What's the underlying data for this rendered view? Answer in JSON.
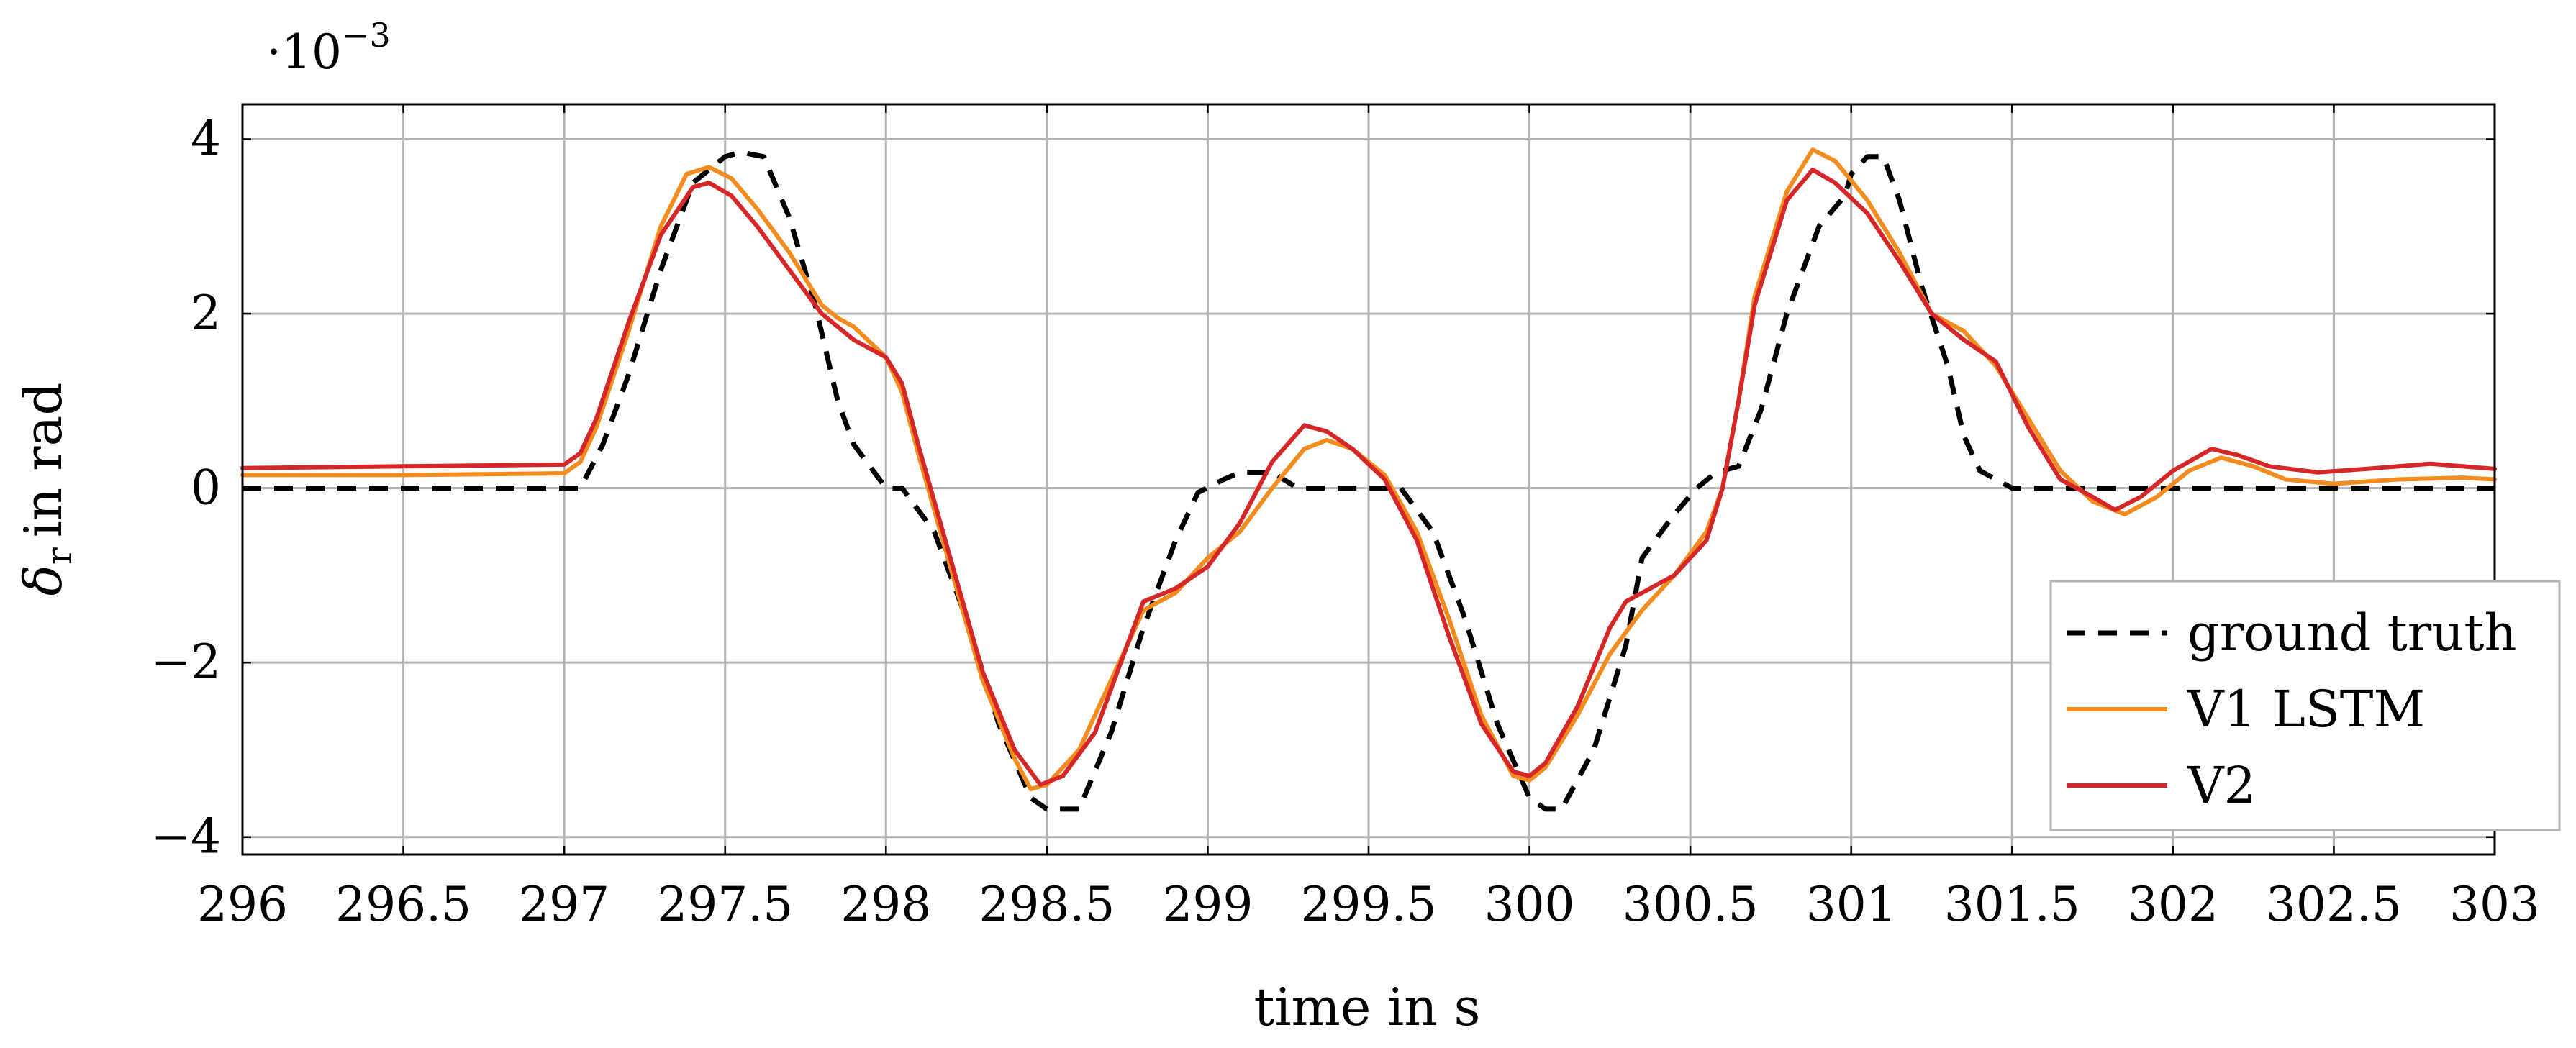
{
  "chart_data": {
    "type": "line",
    "title": "",
    "xlabel": "time in s",
    "ylabel": "in rad",
    "ylabel_symbol": "δ",
    "ylabel_subscript": "r",
    "y_exponent_base": "·10",
    "y_exponent": "−3",
    "xlim": [
      296,
      303
    ],
    "ylim": [
      -4.2,
      4.4
    ],
    "x_ticks": [
      296,
      296.5,
      297,
      297.5,
      298,
      298.5,
      299,
      299.5,
      300,
      300.5,
      301,
      301.5,
      302,
      302.5,
      303
    ],
    "x_tick_labels": [
      "296",
      "296.5",
      "297",
      "297.5",
      "298",
      "298.5",
      "299",
      "299.5",
      "300",
      "300.5",
      "301",
      "301.5",
      "302",
      "302.5",
      "303"
    ],
    "y_ticks": [
      -4,
      -2,
      0,
      2,
      4
    ],
    "y_tick_labels": [
      "−4",
      "−2",
      "0",
      "2",
      "4"
    ],
    "grid": true,
    "legend_position": "bottom-right",
    "series": [
      {
        "name": "ground truth",
        "color": "#000000",
        "dash": true,
        "points": [
          [
            296,
            0
          ],
          [
            297.05,
            0
          ],
          [
            297.12,
            0.5
          ],
          [
            297.2,
            1.3
          ],
          [
            297.3,
            2.5
          ],
          [
            297.4,
            3.5
          ],
          [
            297.5,
            3.8
          ],
          [
            297.55,
            3.85
          ],
          [
            297.62,
            3.8
          ],
          [
            297.7,
            3.1
          ],
          [
            297.78,
            2.1
          ],
          [
            297.85,
            1.0
          ],
          [
            297.9,
            0.5
          ],
          [
            297.95,
            0.25
          ],
          [
            298.0,
            0.0
          ],
          [
            298.05,
            0.0
          ],
          [
            298.15,
            -0.5
          ],
          [
            298.25,
            -1.5
          ],
          [
            298.35,
            -2.7
          ],
          [
            298.45,
            -3.55
          ],
          [
            298.5,
            -3.68
          ],
          [
            298.6,
            -3.68
          ],
          [
            298.7,
            -2.8
          ],
          [
            298.8,
            -1.6
          ],
          [
            298.9,
            -0.6
          ],
          [
            298.97,
            -0.05
          ],
          [
            299.05,
            0.1
          ],
          [
            299.1,
            0.18
          ],
          [
            299.2,
            0.18
          ],
          [
            299.28,
            0.0
          ],
          [
            299.6,
            0.0
          ],
          [
            299.7,
            -0.5
          ],
          [
            299.8,
            -1.5
          ],
          [
            299.9,
            -2.7
          ],
          [
            300.0,
            -3.55
          ],
          [
            300.05,
            -3.68
          ],
          [
            300.1,
            -3.68
          ],
          [
            300.2,
            -3.0
          ],
          [
            300.3,
            -1.8
          ],
          [
            300.35,
            -0.8
          ],
          [
            300.45,
            -0.3
          ],
          [
            300.52,
            0.0
          ],
          [
            300.58,
            0.18
          ],
          [
            300.65,
            0.25
          ],
          [
            300.72,
            0.9
          ],
          [
            300.8,
            2.0
          ],
          [
            300.9,
            3.0
          ],
          [
            300.98,
            3.35
          ],
          [
            301.0,
            3.6
          ],
          [
            301.05,
            3.8
          ],
          [
            301.1,
            3.8
          ],
          [
            301.15,
            3.3
          ],
          [
            301.22,
            2.3
          ],
          [
            301.3,
            1.4
          ],
          [
            301.35,
            0.6
          ],
          [
            301.4,
            0.2
          ],
          [
            301.5,
            0.0
          ],
          [
            303,
            0
          ]
        ]
      },
      {
        "name": "V1 LSTM",
        "color": "#f28c1e",
        "dash": false,
        "points": [
          [
            296,
            0.15
          ],
          [
            296.5,
            0.15
          ],
          [
            297.0,
            0.17
          ],
          [
            297.05,
            0.3
          ],
          [
            297.1,
            0.7
          ],
          [
            297.2,
            1.8
          ],
          [
            297.3,
            3.0
          ],
          [
            297.38,
            3.6
          ],
          [
            297.45,
            3.68
          ],
          [
            297.52,
            3.55
          ],
          [
            297.6,
            3.2
          ],
          [
            297.7,
            2.7
          ],
          [
            297.8,
            2.1
          ],
          [
            297.85,
            1.95
          ],
          [
            297.9,
            1.85
          ],
          [
            298.0,
            1.5
          ],
          [
            298.05,
            1.1
          ],
          [
            298.1,
            0.4
          ],
          [
            298.2,
            -0.9
          ],
          [
            298.3,
            -2.2
          ],
          [
            298.4,
            -3.1
          ],
          [
            298.45,
            -3.45
          ],
          [
            298.5,
            -3.4
          ],
          [
            298.6,
            -3.0
          ],
          [
            298.7,
            -2.2
          ],
          [
            298.8,
            -1.4
          ],
          [
            298.9,
            -1.2
          ],
          [
            299.0,
            -0.8
          ],
          [
            299.1,
            -0.5
          ],
          [
            299.2,
            0.0
          ],
          [
            299.3,
            0.45
          ],
          [
            299.37,
            0.55
          ],
          [
            299.45,
            0.45
          ],
          [
            299.55,
            0.15
          ],
          [
            299.65,
            -0.5
          ],
          [
            299.75,
            -1.5
          ],
          [
            299.85,
            -2.6
          ],
          [
            299.95,
            -3.3
          ],
          [
            300.0,
            -3.35
          ],
          [
            300.05,
            -3.2
          ],
          [
            300.15,
            -2.6
          ],
          [
            300.25,
            -1.9
          ],
          [
            300.35,
            -1.4
          ],
          [
            300.45,
            -1.0
          ],
          [
            300.55,
            -0.5
          ],
          [
            300.6,
            0.0
          ],
          [
            300.65,
            1.0
          ],
          [
            300.7,
            2.2
          ],
          [
            300.8,
            3.4
          ],
          [
            300.88,
            3.88
          ],
          [
            300.95,
            3.75
          ],
          [
            301.05,
            3.3
          ],
          [
            301.15,
            2.7
          ],
          [
            301.25,
            2.0
          ],
          [
            301.35,
            1.8
          ],
          [
            301.45,
            1.4
          ],
          [
            301.55,
            0.8
          ],
          [
            301.65,
            0.2
          ],
          [
            301.75,
            -0.15
          ],
          [
            301.85,
            -0.3
          ],
          [
            301.95,
            -0.1
          ],
          [
            302.05,
            0.2
          ],
          [
            302.15,
            0.35
          ],
          [
            302.25,
            0.25
          ],
          [
            302.35,
            0.1
          ],
          [
            302.5,
            0.05
          ],
          [
            302.7,
            0.1
          ],
          [
            302.9,
            0.12
          ],
          [
            303,
            0.1
          ]
        ]
      },
      {
        "name": "V2",
        "color": "#d62728",
        "dash": false,
        "points": [
          [
            296,
            0.23
          ],
          [
            296.5,
            0.25
          ],
          [
            297.0,
            0.27
          ],
          [
            297.05,
            0.4
          ],
          [
            297.1,
            0.8
          ],
          [
            297.2,
            1.9
          ],
          [
            297.3,
            2.9
          ],
          [
            297.4,
            3.45
          ],
          [
            297.45,
            3.5
          ],
          [
            297.52,
            3.35
          ],
          [
            297.6,
            3.0
          ],
          [
            297.7,
            2.5
          ],
          [
            297.8,
            2.0
          ],
          [
            297.9,
            1.7
          ],
          [
            298.0,
            1.5
          ],
          [
            298.05,
            1.2
          ],
          [
            298.1,
            0.5
          ],
          [
            298.2,
            -0.8
          ],
          [
            298.3,
            -2.1
          ],
          [
            298.4,
            -3.0
          ],
          [
            298.48,
            -3.4
          ],
          [
            298.55,
            -3.3
          ],
          [
            298.65,
            -2.8
          ],
          [
            298.75,
            -1.8
          ],
          [
            298.8,
            -1.3
          ],
          [
            298.9,
            -1.15
          ],
          [
            299.0,
            -0.9
          ],
          [
            299.1,
            -0.4
          ],
          [
            299.2,
            0.3
          ],
          [
            299.3,
            0.72
          ],
          [
            299.37,
            0.65
          ],
          [
            299.45,
            0.45
          ],
          [
            299.55,
            0.1
          ],
          [
            299.65,
            -0.6
          ],
          [
            299.75,
            -1.7
          ],
          [
            299.85,
            -2.7
          ],
          [
            299.95,
            -3.25
          ],
          [
            300.0,
            -3.3
          ],
          [
            300.05,
            -3.15
          ],
          [
            300.15,
            -2.5
          ],
          [
            300.25,
            -1.6
          ],
          [
            300.3,
            -1.3
          ],
          [
            300.45,
            -1.0
          ],
          [
            300.55,
            -0.6
          ],
          [
            300.6,
            0.0
          ],
          [
            300.65,
            1.0
          ],
          [
            300.7,
            2.1
          ],
          [
            300.8,
            3.3
          ],
          [
            300.88,
            3.65
          ],
          [
            300.95,
            3.5
          ],
          [
            301.05,
            3.15
          ],
          [
            301.15,
            2.6
          ],
          [
            301.25,
            2.0
          ],
          [
            301.35,
            1.7
          ],
          [
            301.45,
            1.45
          ],
          [
            301.55,
            0.7
          ],
          [
            301.65,
            0.1
          ],
          [
            301.75,
            -0.1
          ],
          [
            301.82,
            -0.25
          ],
          [
            301.9,
            -0.1
          ],
          [
            302.0,
            0.2
          ],
          [
            302.12,
            0.45
          ],
          [
            302.2,
            0.38
          ],
          [
            302.3,
            0.25
          ],
          [
            302.45,
            0.18
          ],
          [
            302.6,
            0.22
          ],
          [
            302.8,
            0.28
          ],
          [
            303,
            0.22
          ]
        ]
      }
    ]
  }
}
